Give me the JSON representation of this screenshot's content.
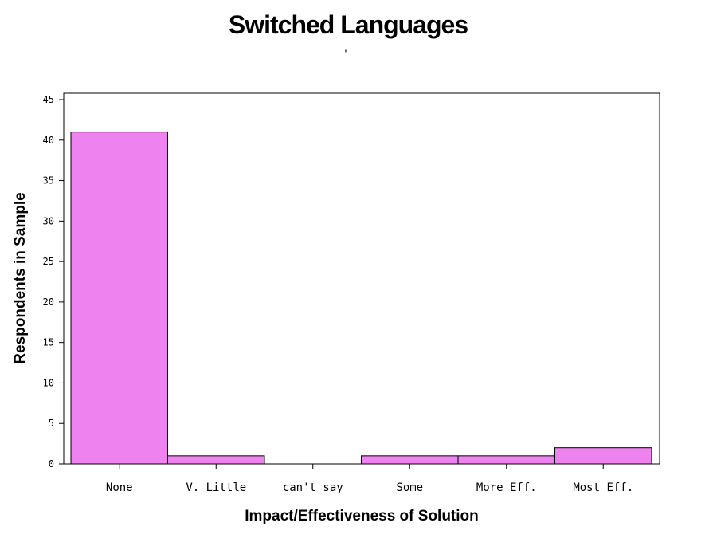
{
  "chart_data": {
    "type": "bar",
    "title": "Switched Languages",
    "subtitle": "'",
    "xlabel": "Impact/Effectiveness of Solution",
    "ylabel": "Respondents in Sample",
    "categories": [
      "None",
      "V. Little",
      "can't say",
      "Some",
      "More Eff.",
      "Most Eff."
    ],
    "values": [
      41,
      1,
      0,
      1,
      1,
      2
    ],
    "ylim": [
      0,
      45
    ],
    "yticks": [
      0,
      5,
      10,
      15,
      20,
      25,
      30,
      35,
      40,
      45
    ],
    "grid": false,
    "legend": "none",
    "bar_color": "#ee82ee",
    "bar_outline_color": "#000000"
  }
}
